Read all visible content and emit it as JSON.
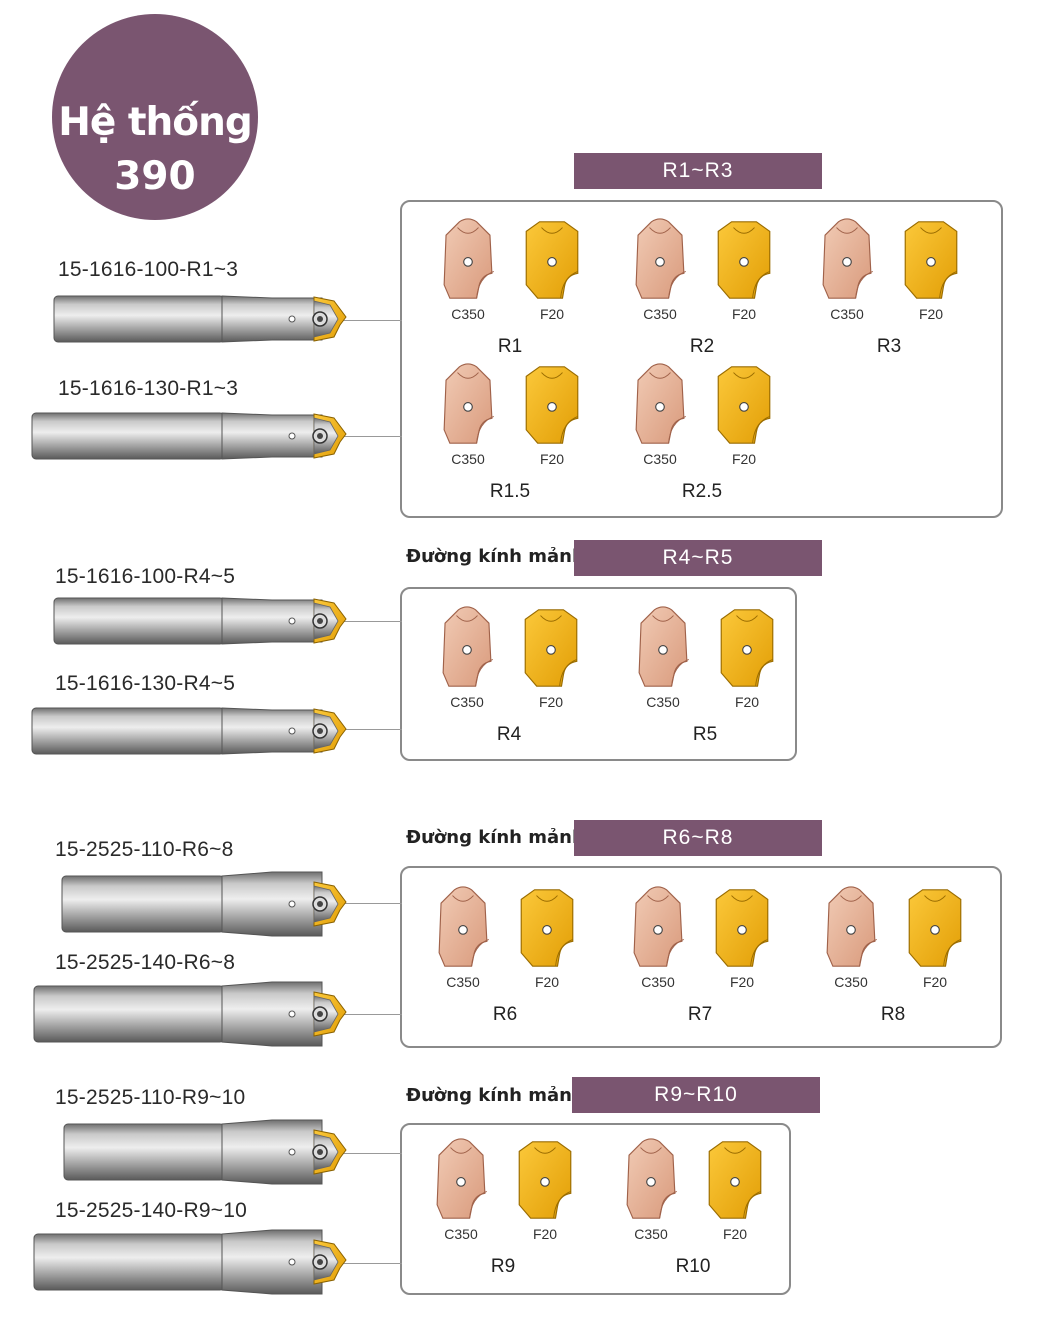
{
  "badge": {
    "line1": "Hệ thống",
    "line2": "390"
  },
  "colors": {
    "accent": "#7a5570",
    "c350": "#e8b79e",
    "f20": "#f2b41d"
  },
  "dk_label": "Đường kính mảnh:",
  "sections": [
    {
      "header": "R1~R3",
      "tools": [
        "15-1616-100-R1~3",
        "15-1616-130-R1~3"
      ],
      "groups": [
        "R1",
        "R2",
        "R3",
        "R1.5",
        "R2.5"
      ]
    },
    {
      "header": "R4~R5",
      "tools": [
        "15-1616-100-R4~5",
        "15-1616-130-R4~5"
      ],
      "groups": [
        "R4",
        "R5"
      ]
    },
    {
      "header": "R6~R8",
      "tools": [
        "15-2525-110-R6~8",
        "15-2525-140-R6~8"
      ],
      "groups": [
        "R6",
        "R7",
        "R8"
      ]
    },
    {
      "header": "R9~R10",
      "tools": [
        "15-2525-110-R9~10",
        "15-2525-140-R9~10"
      ],
      "groups": [
        "R9",
        "R10"
      ]
    }
  ],
  "grades": {
    "c350": "C350",
    "f20": "F20"
  }
}
